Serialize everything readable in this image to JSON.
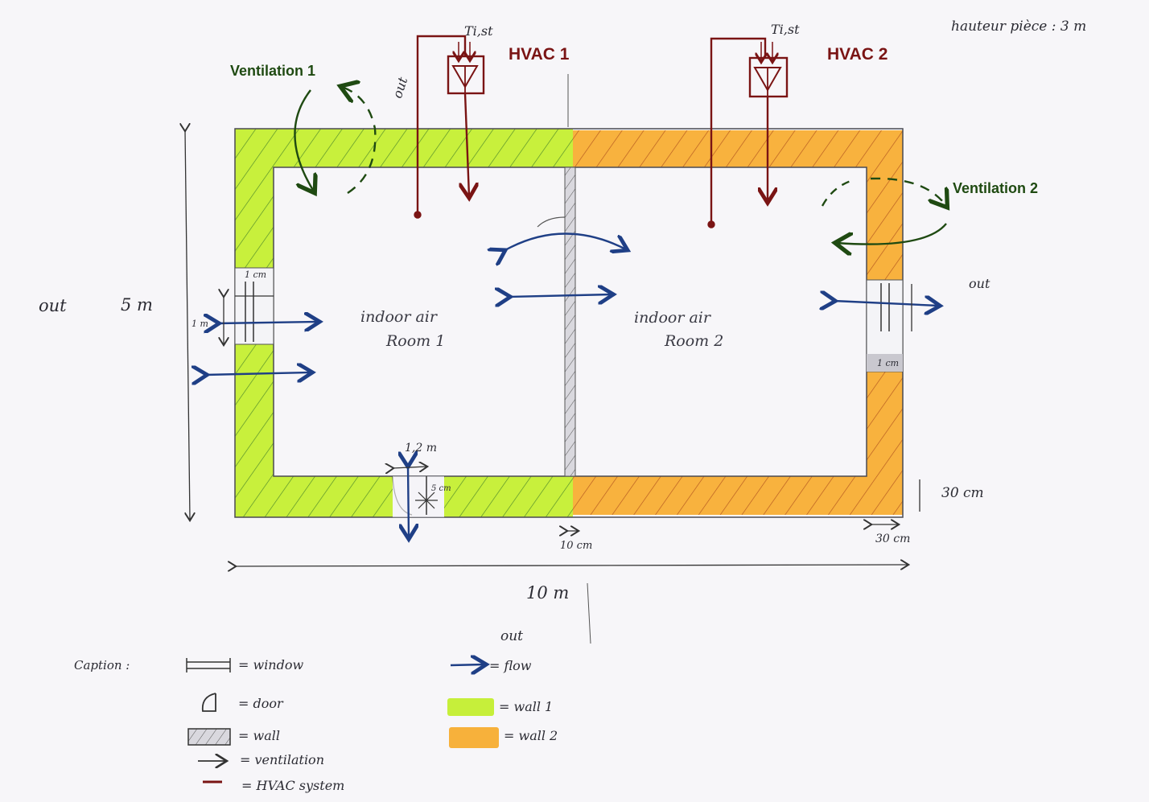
{
  "header": {
    "room_height": "hauteur pièce : 3 m"
  },
  "hvac": [
    {
      "label": "HVAC 1",
      "temp": "Ti,st"
    },
    {
      "label": "HVAC 2",
      "temp": "Ti,st"
    }
  ],
  "ventilation": [
    {
      "label": "Ventilation 1"
    },
    {
      "label": "Ventilation 2"
    }
  ],
  "rooms": [
    {
      "line1": "indoor air",
      "line2": "Room 1"
    },
    {
      "line1": "indoor air",
      "line2": "Room 2"
    }
  ],
  "outside_labels": {
    "left": "out",
    "top": "out",
    "right": "out",
    "legend": "out"
  },
  "dimensions": {
    "height": "5 m",
    "width": "10 m",
    "window_left": "1 m",
    "window_frame_left": "1 cm",
    "window_frame_right": "1 cm",
    "door_width": "1,2 m",
    "door_small": "5 cm",
    "partition": "10 cm",
    "wall_thickness_h": "30 cm",
    "wall_thickness_v": "30 cm"
  },
  "caption": {
    "title": "Caption :",
    "items_left": [
      {
        "symbol": "window-icon",
        "text": "= window"
      },
      {
        "symbol": "door-icon",
        "text": "= door"
      },
      {
        "symbol": "wall-hatch-icon",
        "text": "= wall"
      },
      {
        "symbol": "ventilation-arrow-icon",
        "text": "= ventilation"
      },
      {
        "symbol": "hvac-line-icon",
        "text": "= HVAC system"
      }
    ],
    "items_right": [
      {
        "symbol": "flow-arrow-icon",
        "text": "= flow"
      },
      {
        "symbol": "wall1-swatch",
        "text": "= wall 1"
      },
      {
        "symbol": "wall2-swatch",
        "text": "= wall 2"
      }
    ]
  },
  "colors": {
    "wall1": "#c6ef3a",
    "wall2": "#f7b13b",
    "hvac": "#7a1414",
    "flow": "#1f3f86",
    "ventilation": "#1f4a12"
  }
}
